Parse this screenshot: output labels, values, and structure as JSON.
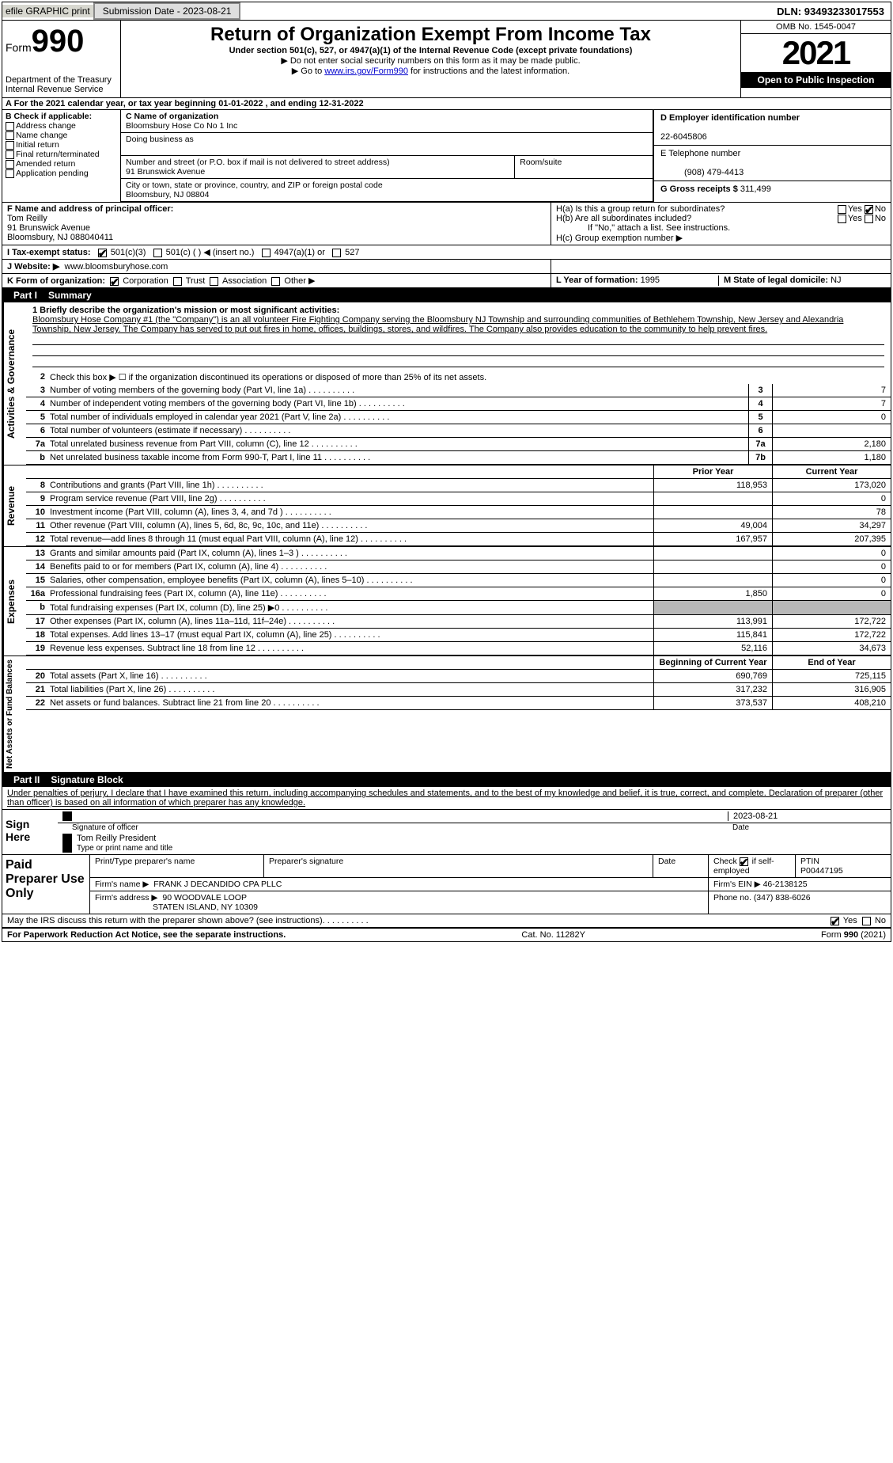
{
  "topbar": {
    "efile": "efile GRAPHIC print",
    "sub_btn": "Submission Date - 2023-08-21",
    "dln": "DLN: 93493233017553"
  },
  "header": {
    "form_word": "Form",
    "form_num": "990",
    "dept": "Department of the Treasury",
    "irs": "Internal Revenue Service",
    "title": "Return of Organization Exempt From Income Tax",
    "sub1": "Under section 501(c), 527, or 4947(a)(1) of the Internal Revenue Code (except private foundations)",
    "sub2": "▶ Do not enter social security numbers on this form as it may be made public.",
    "sub3a": "▶ Go to ",
    "sub3_link": "www.irs.gov/Form990",
    "sub3b": " for instructions and the latest information.",
    "omb": "OMB No. 1545-0047",
    "year": "2021",
    "open": "Open to Public Inspection"
  },
  "row_a": "A For the 2021 calendar year, or tax year beginning 01-01-2022   , and ending 12-31-2022",
  "col_b": {
    "hdr": "B Check if applicable:",
    "opts": [
      "Address change",
      "Name change",
      "Initial return",
      "Final return/terminated",
      "Amended return",
      "Application pending"
    ]
  },
  "col_c": {
    "name_lab": "C Name of organization",
    "name_val": "Bloomsbury Hose Co No 1 Inc",
    "dba_lab": "Doing business as",
    "dba_val": "",
    "addr_lab": "Number and street (or P.O. box if mail is not delivered to street address)",
    "room_lab": "Room/suite",
    "addr_val": "91 Brunswick Avenue",
    "city_lab": "City or town, state or province, country, and ZIP or foreign postal code",
    "city_val": "Bloomsbury, NJ  08804"
  },
  "col_d": {
    "ein_lab": "D Employer identification number",
    "ein_val": "22-6045806",
    "tel_lab": "E Telephone number",
    "tel_val": "(908) 479-4413",
    "gross_lab": "G Gross receipts $",
    "gross_val": "311,499"
  },
  "row_f": {
    "lab": "F Name and address of principal officer:",
    "val1": "Tom Reilly",
    "val2": "91 Brunswick Avenue",
    "val3": "Bloomsbury, NJ  088040411",
    "h_a": "H(a)  Is this a group return for subordinates?",
    "h_b": "H(b)  Are all subordinates included?",
    "h_note": "If \"No,\" attach a list. See instructions.",
    "h_c": "H(c)  Group exemption number ▶",
    "yes": "Yes",
    "no": "No"
  },
  "row_i": {
    "lab": "I   Tax-exempt status:",
    "opts": [
      "501(c)(3)",
      "501(c) (  ) ◀ (insert no.)",
      "4947(a)(1) or",
      "527"
    ]
  },
  "row_j": {
    "lab": "J   Website: ▶",
    "val": "www.bloomsburyhose.com"
  },
  "row_k": {
    "lab": "K Form of organization:",
    "opts": [
      "Corporation",
      "Trust",
      "Association",
      "Other ▶"
    ]
  },
  "row_lm": {
    "l_lab": "L Year of formation:",
    "l_val": "1995",
    "m_lab": "M State of legal domicile:",
    "m_val": "NJ"
  },
  "part1": {
    "num": "Part I",
    "title": "Summary"
  },
  "mission": {
    "lab": "1  Briefly describe the organization's mission or most significant activities:",
    "text": "Bloomsbury Hose Company #1 (the \"Company\") is an all volunteer Fire Fighting Company serving the Bloomsbury NJ Township and surrounding communities of Bethlehem Township, New Jersey and Alexandria Township, New Jersey. The Company has served to put out fires in home, offices, buildings, stores, and wildfires. The Company also provides education to the community to help prevent fires."
  },
  "line2": "Check this box ▶ ☐ if the organization discontinued its operations or disposed of more than 25% of its net assets.",
  "gov_lines": [
    {
      "n": "3",
      "t": "Number of voting members of the governing body (Part VI, line 1a)",
      "b": "3",
      "v": "7"
    },
    {
      "n": "4",
      "t": "Number of independent voting members of the governing body (Part VI, line 1b)",
      "b": "4",
      "v": "7"
    },
    {
      "n": "5",
      "t": "Total number of individuals employed in calendar year 2021 (Part V, line 2a)",
      "b": "5",
      "v": "0"
    },
    {
      "n": "6",
      "t": "Total number of volunteers (estimate if necessary)",
      "b": "6",
      "v": ""
    },
    {
      "n": "7a",
      "t": "Total unrelated business revenue from Part VIII, column (C), line 12",
      "b": "7a",
      "v": "2,180"
    },
    {
      "n": "b",
      "t": "Net unrelated business taxable income from Form 990-T, Part I, line 11",
      "b": "7b",
      "v": "1,180"
    }
  ],
  "col_hdrs": {
    "prior": "Prior Year",
    "current": "Current Year"
  },
  "rev_lines": [
    {
      "n": "8",
      "t": "Contributions and grants (Part VIII, line 1h)",
      "p": "118,953",
      "c": "173,020"
    },
    {
      "n": "9",
      "t": "Program service revenue (Part VIII, line 2g)",
      "p": "",
      "c": "0"
    },
    {
      "n": "10",
      "t": "Investment income (Part VIII, column (A), lines 3, 4, and 7d )",
      "p": "",
      "c": "78"
    },
    {
      "n": "11",
      "t": "Other revenue (Part VIII, column (A), lines 5, 6d, 8c, 9c, 10c, and 11e)",
      "p": "49,004",
      "c": "34,297"
    },
    {
      "n": "12",
      "t": "Total revenue—add lines 8 through 11 (must equal Part VIII, column (A), line 12)",
      "p": "167,957",
      "c": "207,395"
    }
  ],
  "exp_lines": [
    {
      "n": "13",
      "t": "Grants and similar amounts paid (Part IX, column (A), lines 1–3 )",
      "p": "",
      "c": "0"
    },
    {
      "n": "14",
      "t": "Benefits paid to or for members (Part IX, column (A), line 4)",
      "p": "",
      "c": "0"
    },
    {
      "n": "15",
      "t": "Salaries, other compensation, employee benefits (Part IX, column (A), lines 5–10)",
      "p": "",
      "c": "0"
    },
    {
      "n": "16a",
      "t": "Professional fundraising fees (Part IX, column (A), line 11e)",
      "p": "1,850",
      "c": "0"
    },
    {
      "n": "b",
      "t": "Total fundraising expenses (Part IX, column (D), line 25) ▶0",
      "p": "SHADE",
      "c": "SHADE"
    },
    {
      "n": "17",
      "t": "Other expenses (Part IX, column (A), lines 11a–11d, 11f–24e)",
      "p": "113,991",
      "c": "172,722"
    },
    {
      "n": "18",
      "t": "Total expenses. Add lines 13–17 (must equal Part IX, column (A), line 25)",
      "p": "115,841",
      "c": "172,722"
    },
    {
      "n": "19",
      "t": "Revenue less expenses. Subtract line 18 from line 12",
      "p": "52,116",
      "c": "34,673"
    }
  ],
  "na_hdrs": {
    "beg": "Beginning of Current Year",
    "end": "End of Year"
  },
  "na_lines": [
    {
      "n": "20",
      "t": "Total assets (Part X, line 16)",
      "p": "690,769",
      "c": "725,115"
    },
    {
      "n": "21",
      "t": "Total liabilities (Part X, line 26)",
      "p": "317,232",
      "c": "316,905"
    },
    {
      "n": "22",
      "t": "Net assets or fund balances. Subtract line 21 from line 20",
      "p": "373,537",
      "c": "408,210"
    }
  ],
  "part2": {
    "num": "Part II",
    "title": "Signature Block"
  },
  "sig_decl": "Under penalties of perjury, I declare that I have examined this return, including accompanying schedules and statements, and to the best of my knowledge and belief, it is true, correct, and complete. Declaration of preparer (other than officer) is based on all information of which preparer has any knowledge.",
  "sig": {
    "here": "Sign Here",
    "sig_lab": "Signature of officer",
    "date_lab": "Date",
    "date_val": "2023-08-21",
    "name_val": "Tom Reilly  President",
    "name_lab": "Type or print name and title"
  },
  "paid": {
    "hdr": "Paid Preparer Use Only",
    "c1": "Print/Type preparer's name",
    "c2": "Preparer's signature",
    "c3": "Date",
    "c4a": "Check",
    "c4b": "if self-employed",
    "c5": "PTIN",
    "ptin": "P00447195",
    "firm_lab": "Firm's name    ▶",
    "firm_val": "FRANK J DECANDIDO CPA PLLC",
    "ein_lab": "Firm's EIN ▶",
    "ein_val": "46-2138125",
    "addr_lab": "Firm's address ▶",
    "addr_val1": "90 WOODVALE LOOP",
    "addr_val2": "STATEN ISLAND, NY  10309",
    "phone_lab": "Phone no.",
    "phone_val": "(347) 838-6026"
  },
  "may_irs": "May the IRS discuss this return with the preparer shown above? (see instructions)",
  "footer": {
    "left": "For Paperwork Reduction Act Notice, see the separate instructions.",
    "mid": "Cat. No. 11282Y",
    "right": "Form 990 (2021)"
  },
  "side_labels": {
    "gov": "Activities & Governance",
    "rev": "Revenue",
    "exp": "Expenses",
    "na": "Net Assets or Fund Balances"
  }
}
